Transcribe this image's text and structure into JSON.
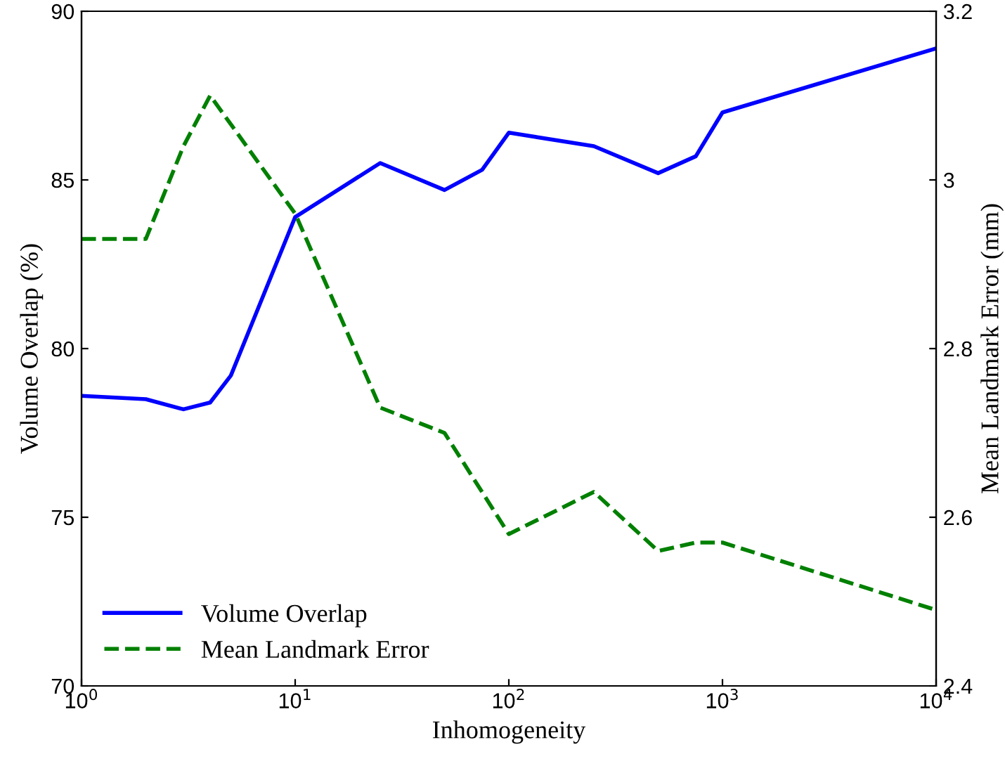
{
  "chart_data": {
    "type": "line",
    "xlabel": "Inhomogeneity",
    "ylabel": "Volume Overlap (%)",
    "y2label": "Mean Landmark Error (mm)",
    "log": "x",
    "xlim": [
      1,
      10000
    ],
    "xticks": [
      {
        "value": 1,
        "label": "10$^{0}$"
      },
      {
        "value": 10,
        "label": "10$^{1}$"
      },
      {
        "value": 100,
        "label": "10$^{2}$"
      },
      {
        "value": 1000,
        "label": "10$^{3}$"
      },
      {
        "value": 10000,
        "label": "10$^{4}$"
      }
    ],
    "ylim": [
      70,
      90
    ],
    "yticks": [
      70,
      75,
      80,
      85,
      90
    ],
    "y2lim": [
      2.4,
      3.2
    ],
    "y2ticks": [
      2.4,
      2.6,
      2.8,
      {
        "value": 3.0,
        "label": "3"
      },
      3.2
    ],
    "legend": "bottom left",
    "grid": false,
    "marker": "none",
    "series": [
      {
        "name": "Volume Overlap",
        "color": "#0000ff",
        "line_style": "solid",
        "x": [
          1,
          2,
          3,
          4,
          5,
          10,
          25,
          50,
          75,
          100,
          250,
          500,
          750,
          1000,
          10000
        ],
        "values": [
          78.6,
          78.5,
          78.2,
          78.4,
          79.2,
          83.9,
          85.5,
          84.7,
          85.3,
          86.4,
          86.0,
          85.2,
          85.7,
          87.0,
          88.9
        ]
      },
      {
        "name": "Mean Landmark Error",
        "color": "#008000",
        "line_style": "dashed",
        "axis": "y2",
        "x": [
          1,
          2,
          3,
          4,
          10,
          25,
          50,
          100,
          250,
          500,
          750,
          1000,
          10000
        ],
        "values": [
          2.93,
          2.93,
          3.04,
          3.1,
          2.96,
          2.73,
          2.7,
          2.58,
          2.63,
          2.56,
          2.57,
          2.57,
          2.49
        ]
      }
    ]
  }
}
